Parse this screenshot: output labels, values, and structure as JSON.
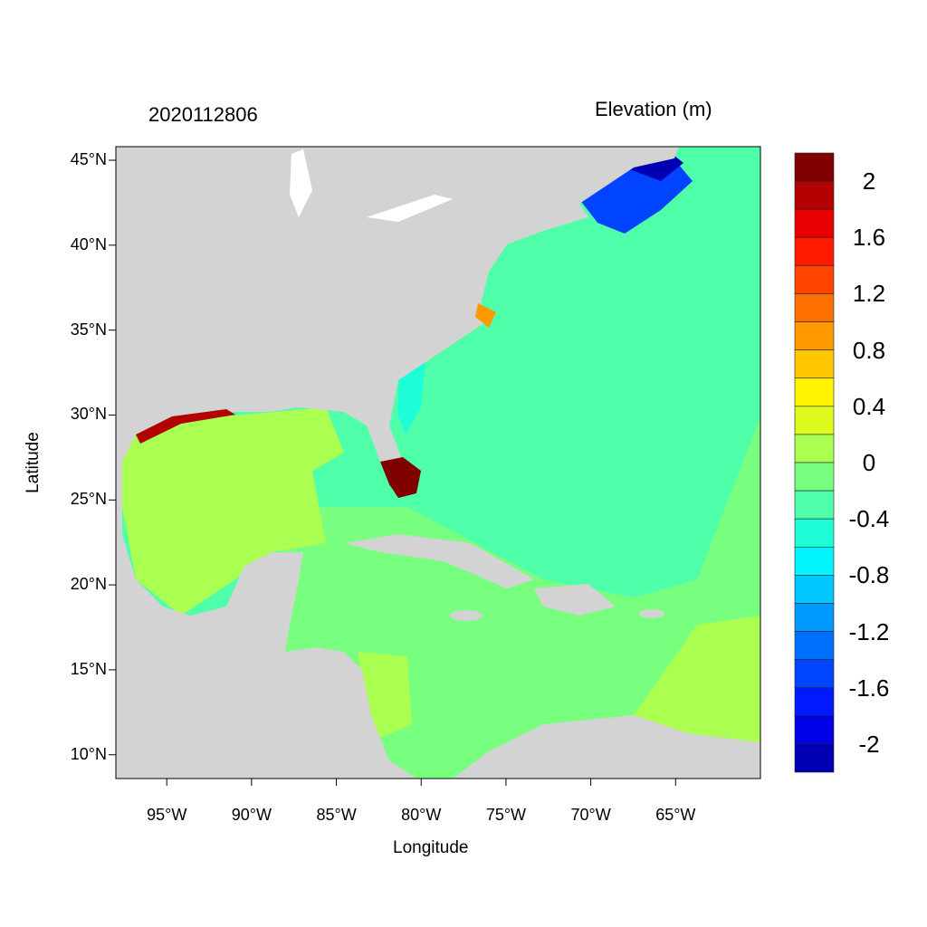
{
  "date_label": "2020112806",
  "variable_title": "Elevation (m)",
  "xlabel": "Longitude",
  "ylabel": "Latitude",
  "chart_data": {
    "type": "heatmap",
    "title": "2020112806",
    "subtitle": "Elevation (m)",
    "xlabel": "Longitude",
    "ylabel": "Latitude",
    "xlim": [
      -98,
      -60
    ],
    "ylim": [
      8.6,
      45.8
    ],
    "x_ticks": [
      {
        "value": -95,
        "label": "95°W"
      },
      {
        "value": -90,
        "label": "90°W"
      },
      {
        "value": -85,
        "label": "85°W"
      },
      {
        "value": -80,
        "label": "80°W"
      },
      {
        "value": -75,
        "label": "75°W"
      },
      {
        "value": -70,
        "label": "70°W"
      },
      {
        "value": -65,
        "label": "65°W"
      }
    ],
    "y_ticks": [
      {
        "value": 45,
        "label": "45°N"
      },
      {
        "value": 40,
        "label": "40°N"
      },
      {
        "value": 35,
        "label": "35°N"
      },
      {
        "value": 30,
        "label": "30°N"
      },
      {
        "value": 25,
        "label": "25°N"
      },
      {
        "value": 20,
        "label": "20°N"
      },
      {
        "value": 15,
        "label": "15°N"
      },
      {
        "value": 10,
        "label": "10°N"
      }
    ],
    "colorbar": {
      "labels": [
        {
          "value": 2,
          "label": "2"
        },
        {
          "value": 1.6,
          "label": "1.6"
        },
        {
          "value": 1.2,
          "label": "1.2"
        },
        {
          "value": 0.8,
          "label": "0.8"
        },
        {
          "value": 0.4,
          "label": "0.4"
        },
        {
          "value": 0,
          "label": "0"
        },
        {
          "value": -0.4,
          "label": "-0.4"
        },
        {
          "value": -0.8,
          "label": "-0.8"
        },
        {
          "value": -1.2,
          "label": "-1.2"
        },
        {
          "value": -1.6,
          "label": "-1.6"
        },
        {
          "value": -2,
          "label": "-2"
        }
      ],
      "range": [
        -2.2,
        2.2
      ],
      "step": 0.2,
      "colors": [
        "#800000",
        "#b30000",
        "#e60000",
        "#ff1a00",
        "#ff4400",
        "#ff7000",
        "#ff9900",
        "#ffc800",
        "#fff500",
        "#dcfa1e",
        "#aaff50",
        "#78ff80",
        "#50ffaa",
        "#1effd9",
        "#00f5ff",
        "#00c8ff",
        "#0099ff",
        "#0070ff",
        "#0044ff",
        "#0019ff",
        "#0000e6",
        "#0000b3"
      ]
    },
    "colors": {
      "land": "#d3d3d3",
      "open_atlantic": "#50ffaa",
      "caribbean": "#78ff80",
      "gulf": "#aaff50",
      "gulf_of_maine": "#0044ff",
      "surge": "#800000"
    }
  }
}
